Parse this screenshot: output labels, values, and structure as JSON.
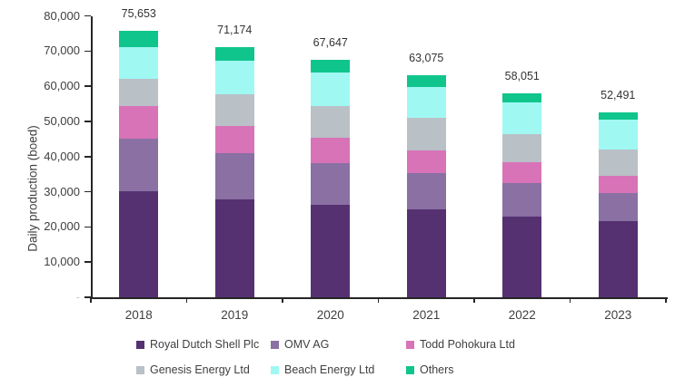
{
  "figure": {
    "background": "#ffffff",
    "text_color": "#404040",
    "axis_color": "#262626",
    "zero_tick_label": "-"
  },
  "chart_data": {
    "type": "bar",
    "variant": "stacked-column",
    "title": "",
    "xlabel": "",
    "ylabel": "Daily production (boed)",
    "ylim": [
      0,
      80000
    ],
    "ytick_interval": 10000,
    "ytick_labels": [
      "10,000",
      "20,000",
      "30,000",
      "40,000",
      "50,000",
      "60,000",
      "70,000",
      "80,000"
    ],
    "grid": false,
    "legend_position": "bottom",
    "categories": [
      "2018",
      "2019",
      "2020",
      "2021",
      "2022",
      "2023"
    ],
    "series": [
      {
        "name": "Royal Dutch Shell Plc",
        "color": "#553172",
        "values": [
          30200,
          27900,
          26300,
          25000,
          23000,
          21600
        ]
      },
      {
        "name": "OMV AG",
        "color": "#8a70a3",
        "values": [
          14900,
          13200,
          11900,
          10200,
          9400,
          7950
        ]
      },
      {
        "name": "Todd Pohokura Ltd",
        "color": "#d873b8",
        "values": [
          9200,
          7500,
          7200,
          6500,
          6100,
          5000
        ]
      },
      {
        "name": "Genesis Energy Ltd",
        "color": "#b9c0c6",
        "values": [
          7800,
          9100,
          9000,
          9300,
          8000,
          7350
        ]
      },
      {
        "name": "Beach Energy Ltd",
        "color": "#a0f8f3",
        "values": [
          9100,
          9500,
          9500,
          8900,
          8900,
          8650
        ]
      },
      {
        "name": "Others",
        "color": "#10c58c",
        "values": [
          4453,
          3974,
          3747,
          3175,
          2651,
          1941
        ]
      }
    ],
    "totals": [
      75653,
      71174,
      67647,
      63075,
      58051,
      52491
    ],
    "total_labels": [
      "75,653",
      "71,174",
      "67,647",
      "63,075",
      "58,051",
      "52,491"
    ]
  }
}
